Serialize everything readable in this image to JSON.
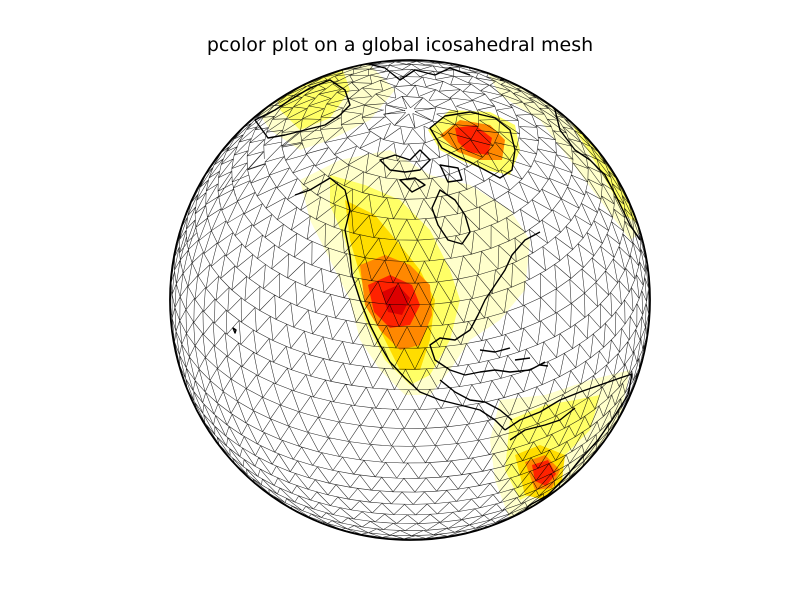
{
  "title": "pcolor plot on a global icosahedral mesh",
  "colors": {
    "background": "#ffffff",
    "mesh": "#000000",
    "coast": "#000000",
    "limb": "#000000",
    "colormap": [
      "#ffffcc",
      "#ffff66",
      "#ffdd00",
      "#ff8800",
      "#ff2200",
      "#dd0000"
    ]
  },
  "legend": null
}
